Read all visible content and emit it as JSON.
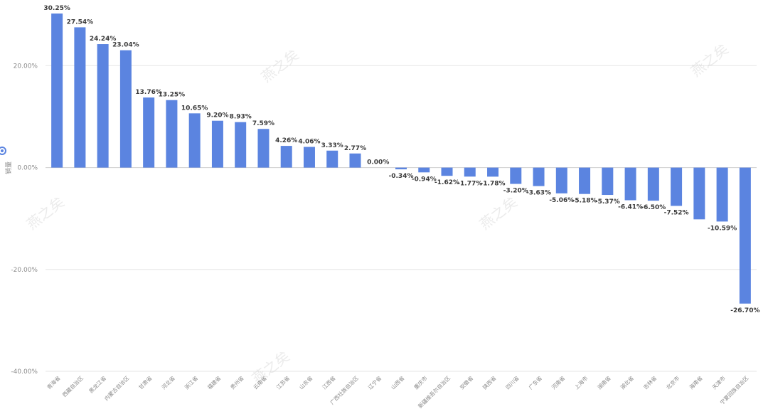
{
  "chart_data": {
    "type": "bar",
    "title": "",
    "xlabel": "",
    "ylabel": "销量",
    "ylim": [
      -40,
      30.25
    ],
    "yticks": [
      20,
      0,
      -20,
      -40
    ],
    "ytick_labels": [
      "20.00%",
      "0.00%",
      "-20.00%",
      "-40.00%"
    ],
    "grid": true,
    "colors": {
      "bar": "#5b84e0",
      "text": "#3a3a3a",
      "axis_text": "#8a8a8a",
      "grid": "#e6e6e6"
    },
    "categories": [
      "青海省",
      "西藏自治区",
      "黑龙江省",
      "内蒙古自治区",
      "甘肃省",
      "河北省",
      "浙江省",
      "福建省",
      "贵州省",
      "云南省",
      "江苏省",
      "山东省",
      "江西省",
      "广西壮族自治区",
      "辽宁省",
      "山西省",
      "重庆市",
      "新疆维吾尔自治区",
      "安徽省",
      "陕西省",
      "四川省",
      "广东省",
      "河南省",
      "上海市",
      "湖南省",
      "湖北省",
      "吉林省",
      "北京市",
      "海南省",
      "天津市",
      "宁夏回族自治区"
    ],
    "values": [
      30.25,
      27.54,
      24.24,
      23.04,
      13.76,
      13.25,
      10.65,
      9.2,
      8.93,
      7.59,
      4.26,
      4.06,
      3.33,
      2.77,
      0.0,
      -0.34,
      -0.94,
      -1.62,
      -1.77,
      -1.78,
      -3.2,
      -3.63,
      -5.06,
      -5.18,
      -5.37,
      -6.41,
      -6.5,
      -7.52,
      -10.16,
      -10.59,
      -26.7
    ],
    "labels": [
      "30.25%",
      "27.54%",
      "24.24%",
      "23.04%",
      "13.76%",
      "13.25%",
      "10.65%",
      "9.20%",
      "8.93%",
      "7.59%",
      "4.26%",
      "4.06%",
      "3.33%",
      "2.77%",
      "0.00%",
      "-0.34%",
      "-0.94%",
      "-1.62%",
      "-1.77%",
      "-1.78%",
      "-3.20%",
      "-3.63%",
      "-5.06%",
      "-5.18%",
      "-5.37%",
      "-6.41%",
      "-6.50%",
      "-7.52%",
      "",
      "-10.59%",
      "-26.70%"
    ]
  },
  "watermark": {
    "text": "燕之矣"
  }
}
